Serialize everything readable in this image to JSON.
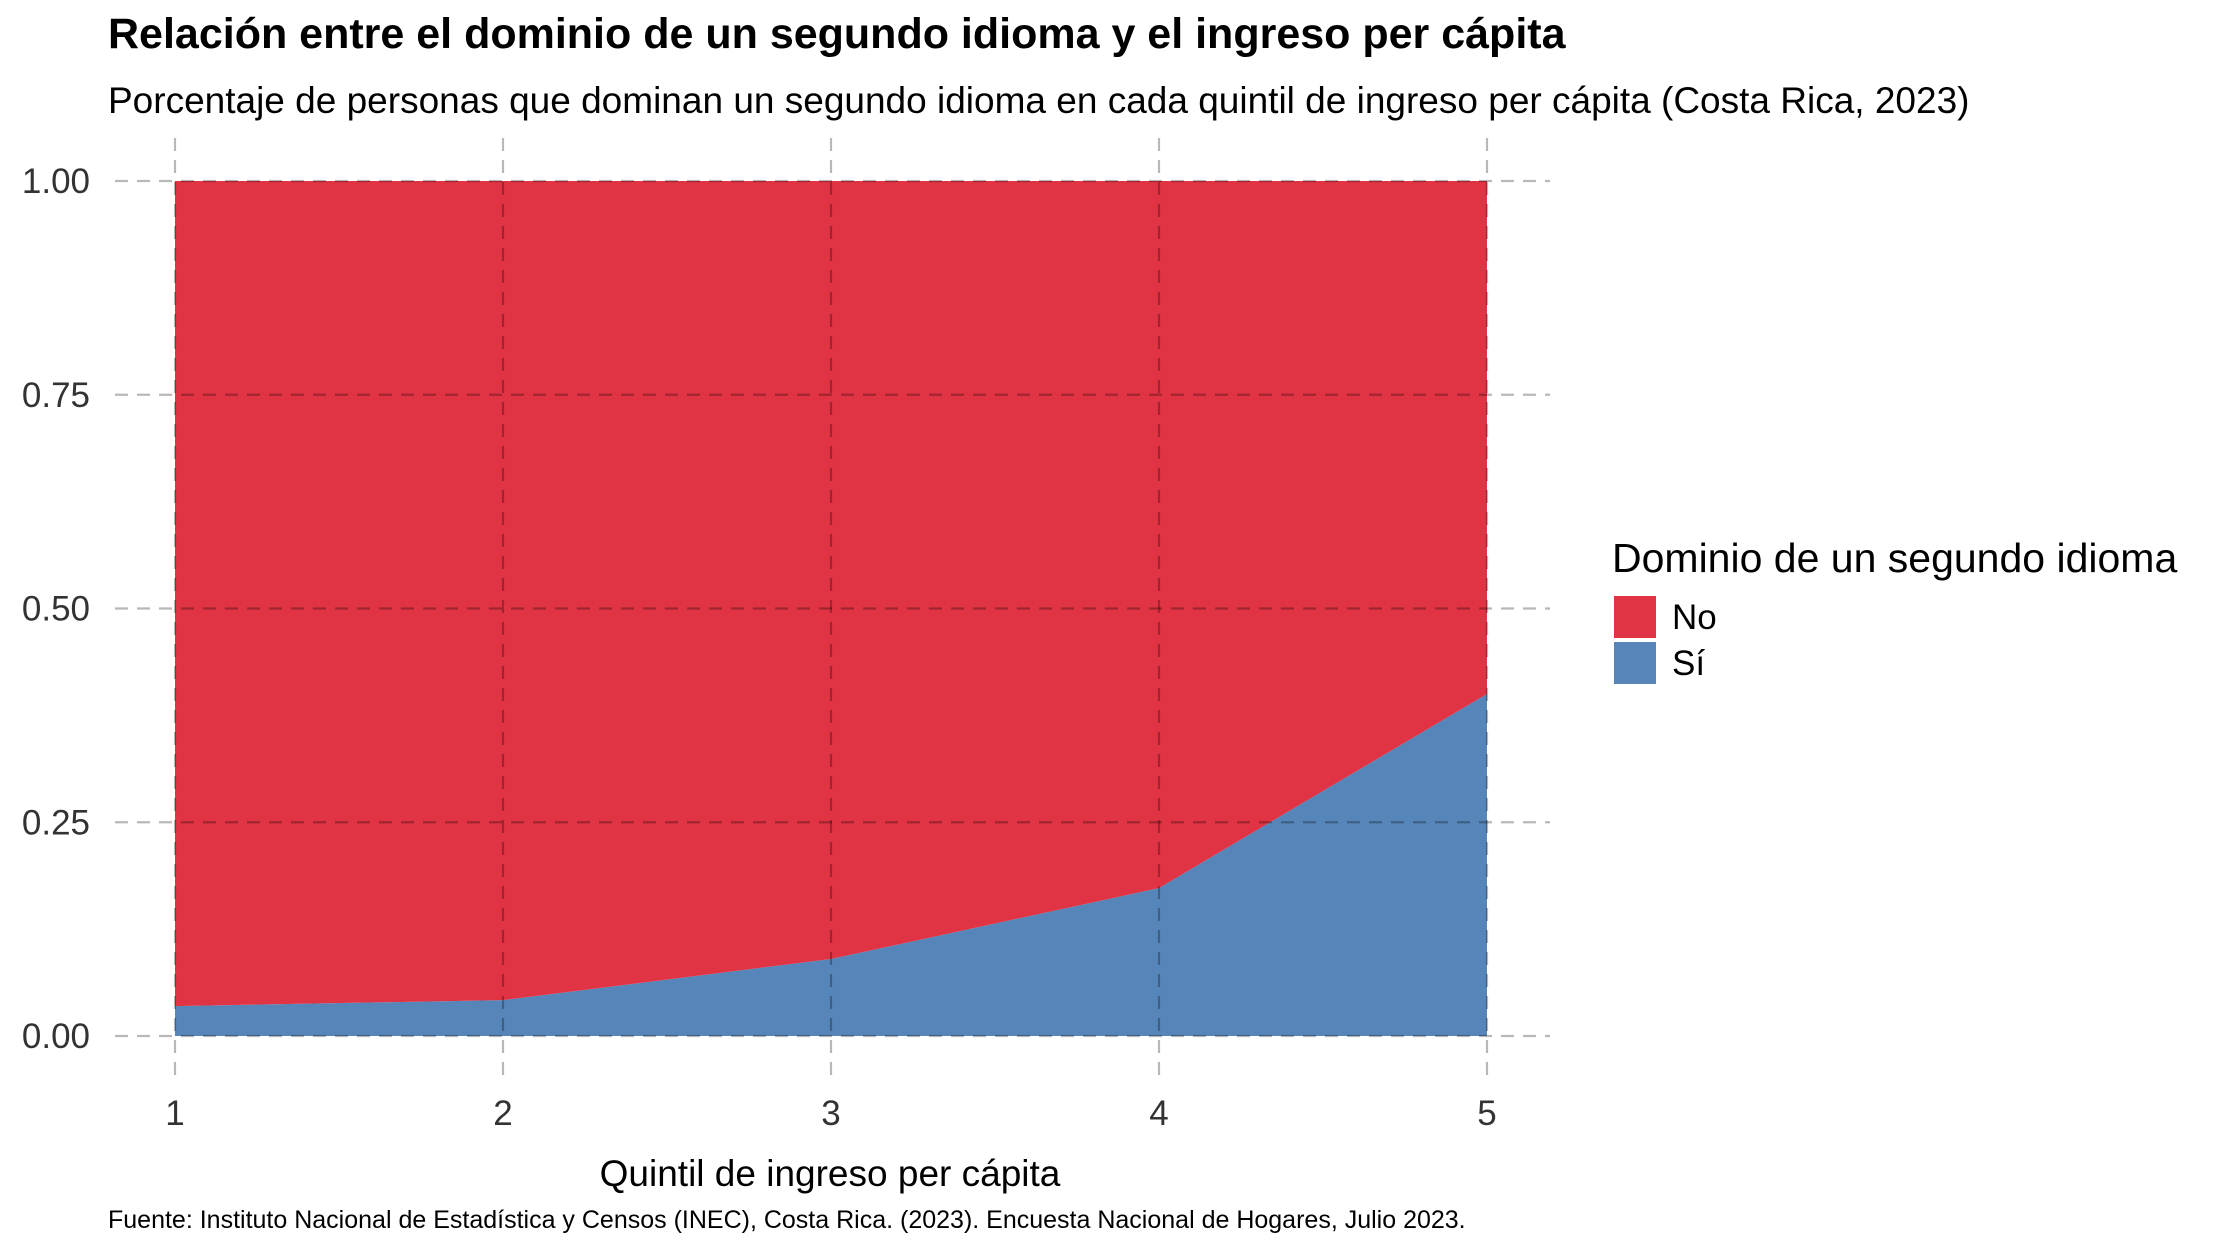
{
  "title": "Relación entre el dominio de un segundo idioma y el ingreso per cápita",
  "subtitle": "Porcentaje de personas que dominan un segundo idioma en cada quintil de ingreso per cápita (Costa Rica, 2023)",
  "caption": "Fuente: Instituto Nacional de Estadística y Censos (INEC), Costa Rica. (2023). Encuesta Nacional de Hogares, Julio 2023.",
  "chart_data": {
    "type": "area",
    "stacked": true,
    "x": [
      1,
      2,
      3,
      4,
      5
    ],
    "x_tick_labels": [
      "1",
      "2",
      "3",
      "4",
      "5"
    ],
    "y_tick_labels": [
      "0.00",
      "0.25",
      "0.50",
      "0.75",
      "1.00"
    ],
    "y_ticks": [
      0,
      0.25,
      0.5,
      0.75,
      1.0
    ],
    "xlim": [
      1,
      5
    ],
    "ylim": [
      0,
      1
    ],
    "xlabel": "Quintil de ingreso per cápita",
    "ylabel": "",
    "grid": true,
    "legend": {
      "title": "Dominio de un segundo idioma",
      "position": "right"
    },
    "series": [
      {
        "name": "Sí",
        "color": "#5686B9",
        "values": [
          0.035,
          0.042,
          0.09,
          0.173,
          0.4
        ]
      },
      {
        "name": "No",
        "color": "#E03343",
        "values": [
          0.965,
          0.958,
          0.91,
          0.827,
          0.6
        ]
      }
    ],
    "legend_order": [
      "No",
      "Sí"
    ]
  }
}
